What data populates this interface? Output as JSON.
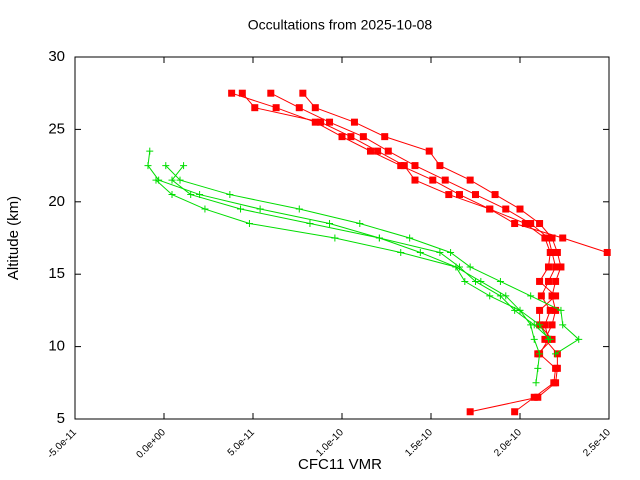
{
  "chart_data": {
    "type": "line",
    "title": "Occultations from 2025-10-08",
    "xlabel": "CFC11 VMR",
    "ylabel": "Altitude (km)",
    "xlim": [
      -5e-11,
      2.5e-10
    ],
    "ylim": [
      5,
      30
    ],
    "xticks": [
      {
        "value": -5e-11,
        "label": "-5.0e-11"
      },
      {
        "value": 0,
        "label": "0.0e+00"
      },
      {
        "value": 5e-11,
        "label": "5.0e-11"
      },
      {
        "value": 1e-10,
        "label": "1.0e-10"
      },
      {
        "value": 1.5e-10,
        "label": "1.5e-10"
      },
      {
        "value": 2e-10,
        "label": "2.0e-10"
      },
      {
        "value": 2.5e-10,
        "label": "2.5e-10"
      }
    ],
    "yticks": [
      5,
      10,
      15,
      20,
      25,
      30
    ],
    "grid": false,
    "series": [
      {
        "color": "#ff0000",
        "marker": "square",
        "x": [
          3.8e-11,
          6.3e-11,
          8.5e-11,
          1e-10,
          1.16e-10,
          1.33e-10,
          1.51e-10,
          1.66e-10,
          1.83e-10,
          1.97e-10,
          2.24e-10,
          2.49e-10
        ],
        "values": [
          27.5,
          26.5,
          25.5,
          24.5,
          23.5,
          22.5,
          21.5,
          20.5,
          19.5,
          18.5,
          17.5,
          16.5
        ]
      },
      {
        "color": "#ff0000",
        "marker": "square",
        "x": [
          6e-11,
          7.6e-11,
          9.3e-11,
          1.12e-10,
          1.26e-10,
          1.41e-10,
          1.58e-10,
          1.75e-10,
          1.92e-10,
          2.06e-10,
          2.16e-10,
          2.18e-10,
          2.2e-10,
          2.16e-10,
          2.12e-10,
          2.17e-10,
          2.14e-10,
          2.16e-10,
          2.11e-10,
          2.2e-10,
          2.19e-10,
          2.08e-10,
          1.97e-10
        ],
        "values": [
          27.5,
          26.5,
          25.5,
          24.5,
          23.5,
          22.5,
          21.5,
          20.5,
          19.5,
          18.5,
          17.5,
          16.5,
          15.5,
          14.5,
          13.5,
          12.5,
          11.5,
          10.5,
          9.5,
          8.5,
          7.5,
          6.5,
          5.5
        ]
      },
      {
        "color": "#ff0000",
        "marker": "square",
        "x": [
          7.8e-11,
          8.5e-11,
          1.07e-10,
          1.24e-10,
          1.49e-10,
          1.55e-10,
          1.72e-10,
          1.86e-10,
          2e-10,
          2.11e-10,
          2.18e-10,
          2.21e-10,
          2.23e-10,
          2.2e-10,
          2.18e-10,
          2.2e-10,
          2.18e-10,
          2.14e-10,
          2.21e-10,
          2.21e-10,
          2.2e-10,
          2.1e-10,
          1.72e-10
        ],
        "values": [
          27.5,
          26.5,
          25.5,
          24.5,
          23.5,
          22.5,
          21.5,
          20.5,
          19.5,
          18.5,
          17.5,
          16.5,
          15.5,
          14.5,
          13.5,
          12.5,
          11.5,
          10.5,
          9.5,
          8.5,
          7.5,
          6.5,
          5.5
        ]
      },
      {
        "color": "#ff0000",
        "marker": "square",
        "x": [
          4.4e-11,
          5.1e-11,
          8.8e-11,
          1.05e-10,
          1.2e-10,
          1.35e-10,
          1.41e-10,
          1.6e-10,
          1.83e-10,
          2.03e-10,
          2.14e-10,
          2.17e-10,
          2.16e-10,
          2.11e-10,
          2.2e-10,
          2.11e-10,
          2.11e-10,
          2.18e-10,
          2.1e-10
        ],
        "values": [
          27.5,
          26.5,
          25.5,
          24.5,
          23.5,
          22.5,
          21.5,
          20.5,
          19.5,
          18.5,
          17.5,
          16.5,
          15.5,
          14.5,
          13.5,
          12.5,
          11.5,
          10.5,
          9.5
        ]
      },
      {
        "color": "#00dd00",
        "marker": "plus",
        "x": [
          -8e-12,
          -9e-12,
          -3e-12,
          2e-11,
          5.4e-11,
          9.3e-11,
          1.21e-10,
          1.44e-10,
          1.64e-10,
          1.78e-10,
          1.92e-10,
          2e-10,
          2.06e-10,
          2.08e-10,
          2.11e-10,
          2.1e-10,
          2.09e-10
        ],
        "values": [
          23.5,
          22.5,
          21.5,
          20.5,
          19.5,
          18.5,
          17.5,
          16.5,
          15.5,
          14.5,
          13.5,
          12.5,
          11.5,
          10.5,
          9.5,
          8.5,
          7.5
        ]
      },
      {
        "color": "#00dd00",
        "marker": "plus",
        "x": [
          1e-12,
          9e-12,
          3.7e-11,
          7.6e-11,
          1.1e-10,
          1.38e-10,
          1.61e-10,
          1.72e-10,
          1.89e-10,
          2.06e-10,
          2.23e-10,
          2.24e-10,
          2.33e-10,
          2.2e-10
        ],
        "values": [
          22.5,
          21.5,
          20.5,
          19.5,
          18.5,
          17.5,
          16.5,
          15.5,
          14.5,
          13.5,
          12.5,
          11.5,
          10.5,
          9.5
        ]
      },
      {
        "color": "#00dd00",
        "marker": "plus",
        "x": [
          1.1e-11,
          4.5e-12,
          1.5e-11,
          4.3e-11,
          8.2e-11,
          1.21e-10,
          1.55e-10,
          1.66e-10,
          1.75e-10,
          1.89e-10,
          1.97e-10,
          2.08e-10,
          2.17e-10
        ],
        "values": [
          22.5,
          21.5,
          20.5,
          19.5,
          18.5,
          17.5,
          16.5,
          15.5,
          14.5,
          13.5,
          12.5,
          11.5,
          10.5
        ]
      },
      {
        "color": "#00dd00",
        "marker": "plus",
        "x": [
          -4.5e-12,
          4.5e-12,
          2.3e-11,
          4.8e-11,
          9.6e-11,
          1.33e-10,
          1.64e-10,
          1.69e-10,
          1.83e-10,
          2e-10,
          2.11e-10,
          2.16e-10
        ],
        "values": [
          21.5,
          20.5,
          19.5,
          18.5,
          17.5,
          16.5,
          15.5,
          14.5,
          13.5,
          12.5,
          11.5,
          10.5
        ]
      }
    ]
  }
}
